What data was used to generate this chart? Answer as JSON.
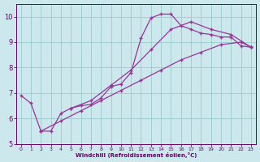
{
  "bg_color": "#cce8ec",
  "grid_color": "#99cccc",
  "line_color": "#993399",
  "marker_color": "#993399",
  "xlabel": "Windchill (Refroidissement éolien,°C)",
  "xlabel_color": "#660066",
  "tick_color": "#660066",
  "xlim": [
    -0.5,
    23.5
  ],
  "ylim": [
    5,
    10.5
  ],
  "yticks": [
    5,
    6,
    7,
    8,
    9,
    10
  ],
  "xticks": [
    0,
    1,
    2,
    3,
    4,
    5,
    6,
    7,
    8,
    9,
    10,
    11,
    12,
    13,
    14,
    15,
    16,
    17,
    18,
    19,
    20,
    21,
    22,
    23
  ],
  "series1_x": [
    0,
    1,
    2,
    3,
    4,
    5,
    6,
    7,
    8,
    9,
    10,
    11,
    12,
    13,
    14,
    15,
    16,
    17,
    18,
    19,
    20,
    21,
    22,
    23
  ],
  "series1_y": [
    6.9,
    6.6,
    5.5,
    5.5,
    6.2,
    6.4,
    6.5,
    6.55,
    6.8,
    7.25,
    7.35,
    7.8,
    9.15,
    9.95,
    10.1,
    10.1,
    9.65,
    9.5,
    9.35,
    9.3,
    9.2,
    9.2,
    8.85,
    8.8
  ],
  "series2_x": [
    2,
    4,
    6,
    8,
    10,
    12,
    14,
    16,
    18,
    20,
    22,
    23
  ],
  "series2_y": [
    5.5,
    5.9,
    6.3,
    6.7,
    7.1,
    7.5,
    7.9,
    8.3,
    8.6,
    8.9,
    9.0,
    8.8
  ],
  "series3_x": [
    5,
    7,
    9,
    11,
    13,
    15,
    17,
    19,
    21,
    23
  ],
  "series3_y": [
    6.4,
    6.7,
    7.3,
    7.9,
    8.7,
    9.5,
    9.8,
    9.5,
    9.3,
    8.8
  ]
}
